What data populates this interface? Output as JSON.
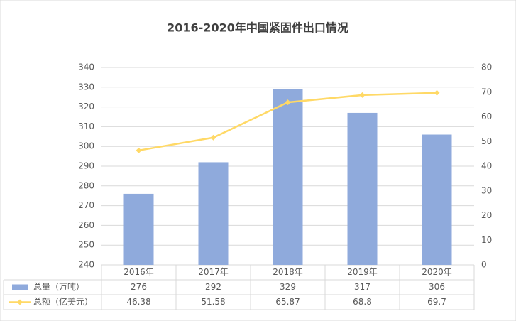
{
  "chart_data": {
    "type": "bar-line",
    "title": "2016-2020年中国紧固件出口情况",
    "categories": [
      "2016年",
      "2017年",
      "2018年",
      "2019年",
      "2020年"
    ],
    "series": [
      {
        "name": "总量（万吨）",
        "type": "bar",
        "color": "#8faadc",
        "values": [
          276,
          292,
          329,
          317,
          306
        ]
      },
      {
        "name": "总额（亿美元）",
        "type": "line",
        "axis": "y2",
        "color": "#ffd966",
        "values": [
          46.38,
          51.58,
          65.87,
          68.8,
          69.7
        ]
      }
    ],
    "ylim": [
      240,
      340
    ],
    "yticks": [
      240,
      250,
      260,
      270,
      280,
      290,
      300,
      310,
      320,
      330,
      340
    ],
    "y2lim": [
      0,
      80
    ],
    "y2ticks": [
      0,
      10,
      20,
      30,
      40,
      50,
      60,
      70,
      80
    ],
    "grid": true
  }
}
